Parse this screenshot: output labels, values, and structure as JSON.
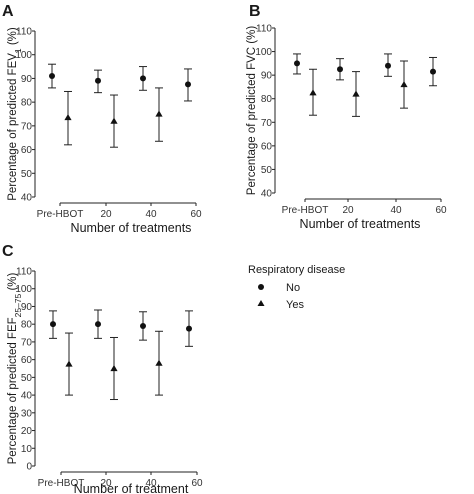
{
  "legend": {
    "title": "Respiratory disease",
    "items": [
      {
        "label": "No",
        "marker": "circle"
      },
      {
        "label": "Yes",
        "marker": "triangle"
      }
    ]
  },
  "chart_data": [
    {
      "panel": "A",
      "type": "scatter",
      "categories": [
        "Pre-HBOT",
        "20",
        "40",
        "60"
      ],
      "xlabel": "Number of treatments",
      "ylabel": "Percentage of predicted FEV1 (%)",
      "ylabel_main": "Percentage of predicted FEV",
      "ylabel_sub": "1",
      "ylabel_tail": " (%)",
      "ylim": [
        40,
        110
      ],
      "yticks": [
        40,
        50,
        60,
        70,
        80,
        90,
        100,
        110
      ],
      "grid": false,
      "series": [
        {
          "name": "No",
          "marker": "circle",
          "points": [
            {
              "x": "Pre-HBOT",
              "y": 91,
              "low": 86,
              "high": 96
            },
            {
              "x": "20",
              "y": 89,
              "low": 84,
              "high": 93.5
            },
            {
              "x": "40",
              "y": 90,
              "low": 85,
              "high": 95
            },
            {
              "x": "60",
              "y": 87.5,
              "low": 80.5,
              "high": 94
            }
          ]
        },
        {
          "name": "Yes",
          "marker": "triangle",
          "points": [
            {
              "x": "Pre-HBOT",
              "y": 73.5,
              "low": 62,
              "high": 84.5
            },
            {
              "x": "20",
              "y": 72,
              "low": 61,
              "high": 83
            },
            {
              "x": "40",
              "y": 75,
              "low": 63.5,
              "high": 86
            }
          ]
        }
      ]
    },
    {
      "panel": "B",
      "type": "scatter",
      "categories": [
        "Pre-HBOT",
        "20",
        "40",
        "60"
      ],
      "xlabel": "Number of treatments",
      "ylabel": "Percentage of predicted FVC (%)",
      "ylabel_main": "Percentage of predicted FVC (%)",
      "ylabel_sub": "",
      "ylabel_tail": "",
      "ylim": [
        40,
        110
      ],
      "yticks": [
        40,
        50,
        60,
        70,
        80,
        90,
        100,
        110
      ],
      "grid": false,
      "series": [
        {
          "name": "No",
          "marker": "circle",
          "points": [
            {
              "x": "Pre-HBOT",
              "y": 95,
              "low": 90.5,
              "high": 99
            },
            {
              "x": "20",
              "y": 92.5,
              "low": 88,
              "high": 97
            },
            {
              "x": "40",
              "y": 94,
              "low": 89.5,
              "high": 99
            },
            {
              "x": "60",
              "y": 91.5,
              "low": 85.5,
              "high": 97.5
            }
          ]
        },
        {
          "name": "Yes",
          "marker": "triangle",
          "points": [
            {
              "x": "Pre-HBOT",
              "y": 82.5,
              "low": 73,
              "high": 92.5
            },
            {
              "x": "20",
              "y": 82,
              "low": 72.5,
              "high": 91.5
            },
            {
              "x": "40",
              "y": 86,
              "low": 76,
              "high": 96
            }
          ]
        }
      ]
    },
    {
      "panel": "C",
      "type": "scatter",
      "categories": [
        "Pre-HBOT",
        "20",
        "40",
        "60"
      ],
      "xlabel": "Number of treatment",
      "ylabel": "Percentage of predicted FEF25–75 (%)",
      "ylabel_main": "Percentage of predicted FEF",
      "ylabel_sub": "25–75",
      "ylabel_tail": " (%)",
      "ylim": [
        0,
        110
      ],
      "yticks": [
        0,
        10,
        20,
        30,
        40,
        50,
        60,
        70,
        80,
        90,
        100,
        110
      ],
      "grid": false,
      "series": [
        {
          "name": "No",
          "marker": "circle",
          "points": [
            {
              "x": "Pre-HBOT",
              "y": 80,
              "low": 72,
              "high": 87.5
            },
            {
              "x": "20",
              "y": 80,
              "low": 72,
              "high": 88
            },
            {
              "x": "40",
              "y": 79,
              "low": 71,
              "high": 87
            },
            {
              "x": "60",
              "y": 77.5,
              "low": 67.5,
              "high": 87.5
            }
          ]
        },
        {
          "name": "Yes",
          "marker": "triangle",
          "points": [
            {
              "x": "Pre-HBOT",
              "y": 57.5,
              "low": 40,
              "high": 75
            },
            {
              "x": "20",
              "y": 55,
              "low": 37.5,
              "high": 72.5
            },
            {
              "x": "40",
              "y": 58,
              "low": 40,
              "high": 76
            }
          ]
        }
      ]
    }
  ]
}
